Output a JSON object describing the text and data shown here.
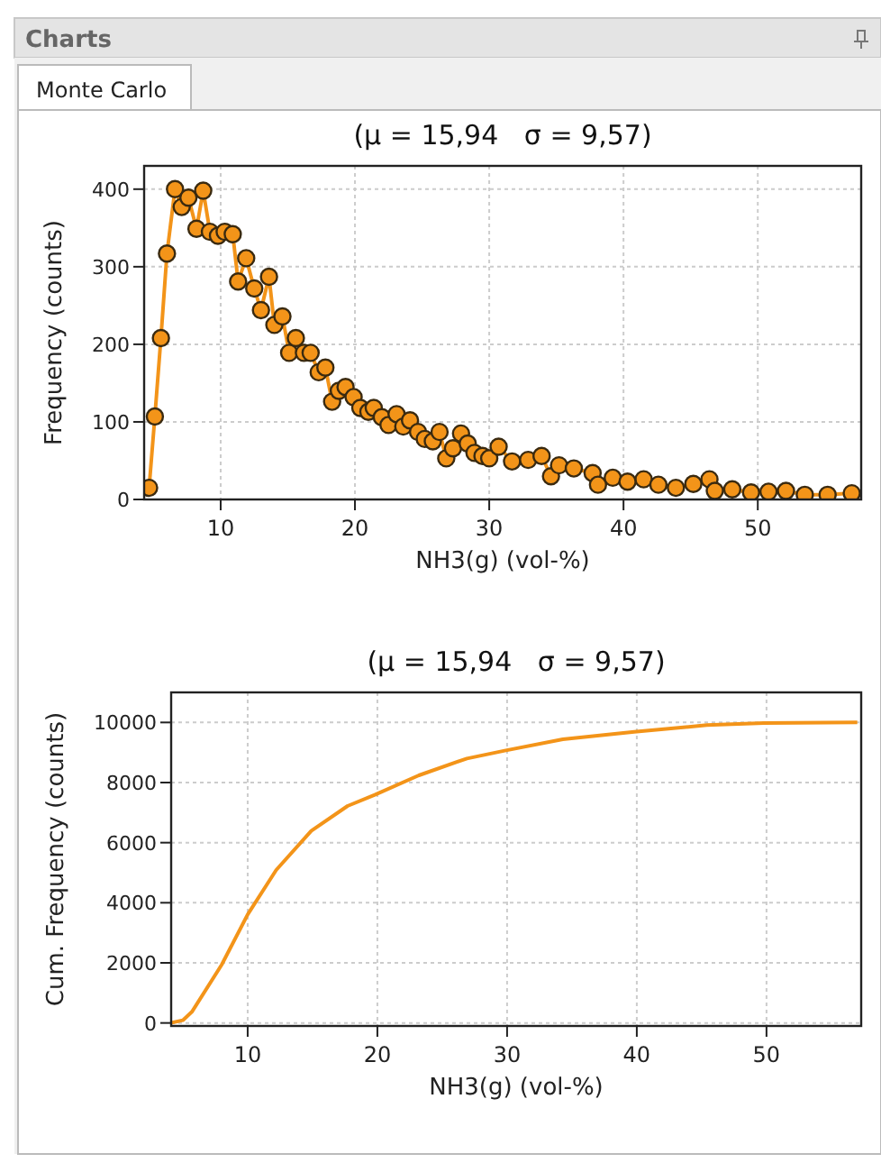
{
  "chart_data": [
    {
      "type": "line",
      "title": "(μ = 15,94   σ = 9,57)",
      "xlabel": "NH3(g) (vol-%)",
      "ylabel": "Frequency (counts)",
      "annotations": [
        "Charts",
        "Monte Carlo"
      ],
      "marker": "circle",
      "grid": true,
      "xlim": [
        4.3,
        57.7
      ],
      "xticks": [
        10,
        20,
        30,
        40,
        50
      ],
      "ylim": [
        0,
        430
      ],
      "yticks": [
        0,
        100,
        200,
        300,
        400
      ],
      "series": [
        {
          "color": "#f39419",
          "x": [
            4.67,
            5.1,
            5.55,
            6.0,
            6.6,
            7.1,
            7.6,
            8.2,
            8.7,
            9.2,
            9.8,
            10.3,
            10.9,
            11.3,
            11.9,
            12.5,
            13.0,
            13.6,
            14.0,
            14.6,
            15.1,
            15.6,
            16.2,
            16.7,
            17.3,
            17.8,
            18.3,
            18.8,
            19.3,
            19.9,
            20.4,
            21.0,
            21.4,
            22.0,
            22.5,
            23.1,
            23.6,
            24.1,
            24.7,
            25.2,
            25.8,
            26.3,
            26.8,
            27.3,
            27.9,
            28.4,
            28.9,
            29.5,
            30.0,
            30.7,
            31.7,
            32.9,
            33.9,
            34.6,
            35.2,
            36.3,
            37.7,
            38.1,
            39.2,
            40.3,
            41.5,
            42.6,
            43.9,
            45.2,
            46.4,
            46.8,
            48.1,
            49.5,
            50.8,
            52.1,
            53.5,
            55.2,
            57.0
          ],
          "values": [
            15,
            107,
            208,
            317,
            400,
            377,
            389,
            349,
            398,
            345,
            340,
            345,
            342,
            281,
            311,
            272,
            244,
            287,
            225,
            236,
            189,
            208,
            189,
            189,
            164,
            170,
            126,
            140,
            145,
            132,
            118,
            113,
            118,
            106,
            96,
            110,
            94,
            102,
            87,
            78,
            75,
            87,
            53,
            66,
            85,
            72,
            60,
            56,
            53,
            68,
            49,
            51,
            56,
            30,
            44,
            40,
            34,
            19,
            28,
            23,
            26,
            19,
            15,
            20,
            26,
            11,
            13,
            9,
            10,
            11,
            6,
            6,
            8
          ]
        }
      ]
    },
    {
      "type": "line",
      "title": "(μ = 15,94   σ = 9,57)",
      "xlabel": "NH3(g) (vol-%)",
      "ylabel": "Cum. Frequency (counts)",
      "grid": true,
      "xlim": [
        4.1,
        57.3
      ],
      "xticks": [
        10,
        20,
        30,
        40,
        50
      ],
      "ylim": [
        -100,
        11000
      ],
      "yticks": [
        0,
        2000,
        4000,
        6000,
        8000,
        10000
      ],
      "series": [
        {
          "color": "#f39419",
          "x": [
            4.1,
            5.0,
            5.7,
            8.0,
            10.0,
            12.2,
            14.9,
            17.7,
            19.8,
            23.2,
            26.9,
            29.9,
            34.3,
            39.8,
            45.4,
            49.8,
            57.0
          ],
          "values": [
            0,
            90,
            370,
            1940,
            3610,
            5090,
            6390,
            7220,
            7590,
            8240,
            8800,
            9070,
            9440,
            9690,
            9910,
            9980,
            10000
          ]
        }
      ]
    }
  ]
}
